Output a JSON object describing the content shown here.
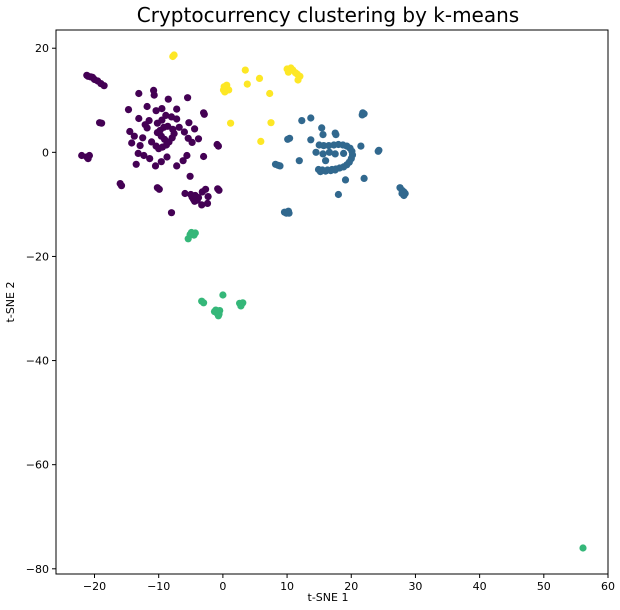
{
  "chart_data": {
    "type": "scatter",
    "title": "Cryptocurrency clustering by k-means",
    "xlabel": "t-SNE 1",
    "ylabel": "t-SNE 2",
    "xlim": [
      -26,
      60
    ],
    "ylim": [
      -81,
      23.5
    ],
    "xticks": [
      -20,
      -10,
      0,
      10,
      20,
      30,
      40,
      50,
      60
    ],
    "yticks": [
      -80,
      -60,
      -40,
      -20,
      0,
      20
    ],
    "grid": false,
    "legend": "none",
    "series": [
      {
        "color": "#440154",
        "points": [
          [
            -21.2,
            14.8
          ],
          [
            -21.0,
            14.6
          ],
          [
            -20.6,
            14.5
          ],
          [
            -20.3,
            14.4
          ],
          [
            -20.0,
            14.0
          ],
          [
            -19.5,
            13.7
          ],
          [
            -19.0,
            13.2
          ],
          [
            -18.5,
            12.8
          ],
          [
            -19.2,
            5.7
          ],
          [
            -18.9,
            5.6
          ],
          [
            -22.0,
            -0.6
          ],
          [
            -21.2,
            -0.9
          ],
          [
            -20.8,
            -0.6
          ],
          [
            -21.0,
            -1.2
          ],
          [
            -16.0,
            -6.0
          ],
          [
            -15.8,
            -6.4
          ],
          [
            -13.1,
            11.3
          ],
          [
            -10.7,
            11.0
          ],
          [
            -10.8,
            11.9
          ],
          [
            -8.5,
            10.2
          ],
          [
            -5.5,
            10.5
          ],
          [
            -3.0,
            7.6
          ],
          [
            -2.9,
            7.3
          ],
          [
            -11.8,
            8.8
          ],
          [
            -10.4,
            8.0
          ],
          [
            -9.5,
            8.4
          ],
          [
            -7.2,
            8.3
          ],
          [
            -14.7,
            8.2
          ],
          [
            -13.1,
            6.5
          ],
          [
            -12.1,
            5.3
          ],
          [
            -11.8,
            4.7
          ],
          [
            -11.5,
            6.1
          ],
          [
            -10.2,
            5.6
          ],
          [
            -9.5,
            6.2
          ],
          [
            -8.9,
            7.1
          ],
          [
            -8.0,
            6.8
          ],
          [
            -7.2,
            6.4
          ],
          [
            -10.2,
            3.8
          ],
          [
            -9.6,
            3.1
          ],
          [
            -9.1,
            2.5
          ],
          [
            -8.4,
            2.0
          ],
          [
            -7.9,
            2.8
          ],
          [
            -7.6,
            3.6
          ],
          [
            -7.8,
            4.4
          ],
          [
            -8.6,
            5.0
          ],
          [
            -9.2,
            4.8
          ],
          [
            -9.8,
            4.2
          ],
          [
            -10.4,
            1.2
          ],
          [
            -10.0,
            0.7
          ],
          [
            -9.4,
            1.0
          ],
          [
            -8.8,
            1.4
          ],
          [
            -14.5,
            4.0
          ],
          [
            -14.2,
            1.8
          ],
          [
            -13.8,
            3.1
          ],
          [
            -12.5,
            2.8
          ],
          [
            -12.9,
            1.3
          ],
          [
            -11.1,
            2.0
          ],
          [
            -13.2,
            -0.2
          ],
          [
            -12.3,
            -0.6
          ],
          [
            -11.4,
            -1.2
          ],
          [
            -10.5,
            -2.6
          ],
          [
            -9.6,
            -1.8
          ],
          [
            -8.7,
            -0.9
          ],
          [
            -7.2,
            -2.6
          ],
          [
            -6.2,
            -1.6
          ],
          [
            -5.6,
            -0.6
          ],
          [
            -6.8,
            4.8
          ],
          [
            -6.0,
            3.9
          ],
          [
            -5.4,
            2.7
          ],
          [
            -4.8,
            1.9
          ],
          [
            -5.3,
            5.7
          ],
          [
            -4.4,
            4.5
          ],
          [
            -3.8,
            2.6
          ],
          [
            -13.5,
            -2.3
          ],
          [
            -3.0,
            -0.8
          ],
          [
            -0.9,
            1.5
          ],
          [
            -0.7,
            1.2
          ],
          [
            -10.2,
            -6.8
          ],
          [
            -9.9,
            -7.1
          ],
          [
            -5.1,
            -4.6
          ],
          [
            -5.0,
            -8.1
          ],
          [
            -4.8,
            -8.6
          ],
          [
            -4.6,
            -9.0
          ],
          [
            -4.4,
            -9.4
          ],
          [
            -4.0,
            -9.2
          ],
          [
            -3.8,
            -8.7
          ],
          [
            -4.3,
            -8.3
          ],
          [
            -3.2,
            -7.6
          ],
          [
            -2.7,
            -7.1
          ],
          [
            -2.3,
            -8.5
          ],
          [
            -2.4,
            -9.8
          ],
          [
            -3.3,
            -10.1
          ],
          [
            -5.9,
            -7.9
          ],
          [
            -8.0,
            -11.6
          ],
          [
            -0.8,
            -7.0
          ],
          [
            -0.6,
            -7.3
          ]
        ]
      },
      {
        "color": "#31688e",
        "points": [
          [
            15.0,
            1.4
          ],
          [
            15.7,
            1.3
          ],
          [
            16.5,
            1.3
          ],
          [
            17.3,
            1.4
          ],
          [
            18.0,
            1.5
          ],
          [
            18.7,
            1.4
          ],
          [
            19.3,
            1.2
          ],
          [
            19.8,
            0.8
          ],
          [
            20.1,
            0.2
          ],
          [
            20.2,
            -0.5
          ],
          [
            20.0,
            -1.2
          ],
          [
            19.7,
            -1.9
          ],
          [
            19.3,
            -2.4
          ],
          [
            18.8,
            -2.8
          ],
          [
            18.2,
            -3.0
          ],
          [
            17.6,
            -3.2
          ],
          [
            17.0,
            -3.3
          ],
          [
            16.3,
            -3.4
          ],
          [
            15.5,
            -3.4
          ],
          [
            14.9,
            -3.3
          ],
          [
            15.2,
            -3.7
          ],
          [
            16.0,
            -3.6
          ],
          [
            16.8,
            -3.5
          ],
          [
            17.5,
            -3.4
          ],
          [
            14.5,
            0.0
          ],
          [
            15.6,
            -0.3
          ],
          [
            16.6,
            0.0
          ],
          [
            17.5,
            -0.3
          ],
          [
            18.8,
            -0.2
          ],
          [
            17.5,
            3.7
          ],
          [
            17.6,
            3.4
          ],
          [
            16.0,
            -1.6
          ],
          [
            12.3,
            6.1
          ],
          [
            13.7,
            6.6
          ],
          [
            15.4,
            4.7
          ],
          [
            15.6,
            3.4
          ],
          [
            13.7,
            2.4
          ],
          [
            10.4,
            2.7
          ],
          [
            10.1,
            2.5
          ],
          [
            11.9,
            -1.6
          ],
          [
            21.7,
            7.2
          ],
          [
            21.8,
            7.6
          ],
          [
            22.0,
            7.4
          ],
          [
            24.3,
            0.4
          ],
          [
            24.2,
            0.2
          ],
          [
            21.5,
            1.2
          ],
          [
            22.0,
            -5.0
          ],
          [
            19.1,
            -5.3
          ],
          [
            18.0,
            -8.1
          ],
          [
            8.2,
            -2.3
          ],
          [
            8.6,
            -2.5
          ],
          [
            8.9,
            -2.6
          ],
          [
            9.6,
            -11.5
          ],
          [
            9.9,
            -11.7
          ],
          [
            10.2,
            -11.3
          ],
          [
            10.3,
            -11.7
          ],
          [
            27.6,
            -6.8
          ],
          [
            27.9,
            -7.3
          ],
          [
            28.2,
            -7.6
          ],
          [
            28.4,
            -7.9
          ],
          [
            28.2,
            -8.3
          ],
          [
            27.9,
            -7.9
          ]
        ]
      },
      {
        "color": "#35b779",
        "points": [
          [
            -4.9,
            -15.4
          ],
          [
            -4.6,
            -15.7
          ],
          [
            -4.3,
            -15.5
          ],
          [
            -4.5,
            -15.9
          ],
          [
            -5.1,
            -15.8
          ],
          [
            -5.4,
            -16.6
          ],
          [
            -3.3,
            -28.6
          ],
          [
            -3.0,
            -28.9
          ],
          [
            0.0,
            -27.4
          ],
          [
            2.6,
            -29.0
          ],
          [
            2.9,
            -29.2
          ],
          [
            3.1,
            -28.9
          ],
          [
            2.8,
            -29.5
          ],
          [
            -1.3,
            -30.6
          ],
          [
            -0.9,
            -30.9
          ],
          [
            -0.5,
            -30.4
          ],
          [
            -0.6,
            -31.1
          ],
          [
            -1.1,
            -30.3
          ],
          [
            -0.7,
            -31.4
          ],
          [
            56.1,
            -76.0
          ]
        ]
      },
      {
        "color": "#fde725",
        "points": [
          [
            -7.8,
            18.4
          ],
          [
            -7.6,
            18.7
          ],
          [
            0.1,
            12.0
          ],
          [
            0.5,
            12.4
          ],
          [
            0.3,
            11.6
          ],
          [
            0.6,
            12.9
          ],
          [
            0.9,
            12.0
          ],
          [
            0.2,
            12.6
          ],
          [
            3.5,
            15.8
          ],
          [
            3.8,
            13.1
          ],
          [
            5.7,
            14.2
          ],
          [
            7.3,
            11.3
          ],
          [
            1.2,
            5.6
          ],
          [
            7.5,
            5.7
          ],
          [
            5.9,
            2.1
          ],
          [
            10.0,
            16.0
          ],
          [
            10.3,
            15.7
          ],
          [
            10.6,
            16.2
          ],
          [
            10.9,
            15.8
          ],
          [
            11.3,
            15.3
          ],
          [
            11.6,
            15.0
          ],
          [
            12.0,
            14.6
          ],
          [
            11.7,
            13.9
          ],
          [
            10.2,
            15.4
          ]
        ]
      }
    ]
  }
}
